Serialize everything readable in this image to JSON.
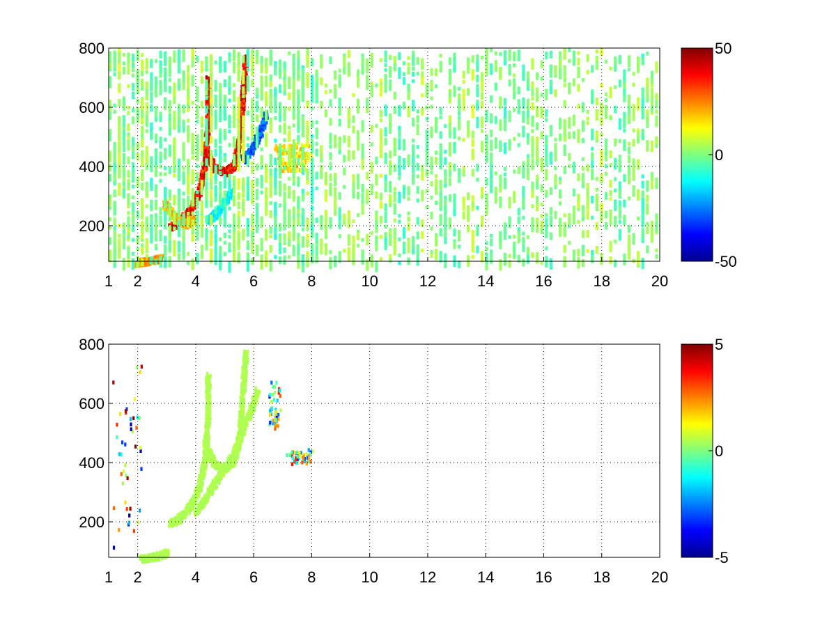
{
  "chart_data": [
    {
      "type": "heatmap",
      "x_ticks": [
        "1",
        "2",
        "4",
        "6",
        "8",
        "10",
        "12",
        "14",
        "16",
        "18",
        "20"
      ],
      "y_ticks": [
        "200",
        "400",
        "600",
        "800"
      ],
      "xlim": [
        1,
        20
      ],
      "ylim": [
        80,
        800
      ],
      "grid": true,
      "colormap": "jet",
      "colorbar": {
        "range": [
          -50,
          50
        ],
        "ticks": [
          "50",
          "0",
          "-50"
        ]
      },
      "features": [
        {
          "kind": "curve",
          "value": 40,
          "points": [
            [
              3.1,
              200
            ],
            [
              3.4,
              215
            ],
            [
              3.8,
              260
            ],
            [
              4.1,
              320
            ],
            [
              4.3,
              420
            ],
            [
              4.4,
              560
            ],
            [
              4.4,
              700
            ]
          ]
        },
        {
          "kind": "curve",
          "value": 40,
          "points": [
            [
              4.3,
              470
            ],
            [
              4.6,
              400
            ],
            [
              5.0,
              385
            ],
            [
              5.3,
              410
            ],
            [
              5.5,
              500
            ],
            [
              5.6,
              650
            ],
            [
              5.7,
              780
            ]
          ]
        },
        {
          "kind": "curve",
          "value": 22,
          "points": [
            [
              2.9,
              280
            ],
            [
              3.3,
              230
            ],
            [
              3.6,
              210
            ],
            [
              3.9,
              225
            ]
          ]
        },
        {
          "kind": "curve",
          "value": -30,
          "points": [
            [
              5.6,
              430
            ],
            [
              5.9,
              460
            ],
            [
              6.2,
              520
            ],
            [
              6.4,
              580
            ]
          ]
        },
        {
          "kind": "curve",
          "value": -15,
          "points": [
            [
              4.4,
              220
            ],
            [
              4.8,
              260
            ],
            [
              5.2,
              320
            ]
          ]
        },
        {
          "kind": "curve",
          "value": 25,
          "points": [
            [
              1.9,
              80
            ],
            [
              2.3,
              85
            ],
            [
              2.8,
              95
            ]
          ]
        },
        {
          "kind": "blob",
          "value": 18,
          "x": [
            6.7,
            8.0
          ],
          "y": [
            390,
            480
          ]
        },
        {
          "kind": "noise",
          "value_range": [
            -15,
            12
          ],
          "x": [
            1,
            20
          ],
          "y": [
            80,
            800
          ]
        }
      ]
    },
    {
      "type": "heatmap",
      "x_ticks": [
        "1",
        "2",
        "4",
        "6",
        "8",
        "10",
        "12",
        "14",
        "16",
        "18",
        "20"
      ],
      "y_ticks": [
        "200",
        "400",
        "600",
        "800"
      ],
      "xlim": [
        1,
        20
      ],
      "ylim": [
        80,
        800
      ],
      "grid": true,
      "colormap": "jet",
      "colorbar": {
        "range": [
          -5,
          5
        ],
        "ticks": [
          "5",
          "0",
          "-5"
        ]
      },
      "features": [
        {
          "kind": "curve",
          "value": 0.5,
          "points": [
            [
              3.1,
              200
            ],
            [
              3.4,
              215
            ],
            [
              3.8,
              260
            ],
            [
              4.1,
              320
            ],
            [
              4.3,
              420
            ],
            [
              4.4,
              560
            ],
            [
              4.4,
              700
            ]
          ]
        },
        {
          "kind": "curve",
          "value": 0.5,
          "points": [
            [
              4.3,
              470
            ],
            [
              4.6,
              400
            ],
            [
              5.0,
              385
            ],
            [
              5.3,
              410
            ],
            [
              5.5,
              500
            ],
            [
              5.6,
              650
            ],
            [
              5.7,
              780
            ]
          ]
        },
        {
          "kind": "curve",
          "value": 0.5,
          "points": [
            [
              4.0,
              240
            ],
            [
              4.6,
              330
            ],
            [
              5.2,
              420
            ],
            [
              5.8,
              560
            ],
            [
              6.1,
              650
            ]
          ]
        },
        {
          "kind": "curve",
          "value": 0.5,
          "points": [
            [
              2.1,
              80
            ],
            [
              2.6,
              88
            ],
            [
              3.0,
              100
            ]
          ]
        },
        {
          "kind": "scatter",
          "value_range": [
            -4,
            4
          ],
          "x": [
            6.5,
            6.9
          ],
          "y": [
            520,
            680
          ]
        },
        {
          "kind": "scatter",
          "value_range": [
            -4,
            4
          ],
          "x": [
            7.1,
            8.0
          ],
          "y": [
            400,
            450
          ]
        },
        {
          "kind": "scatter",
          "value_range": [
            -5,
            5
          ],
          "x": [
            1.1,
            2.1
          ],
          "y": [
            100,
            740
          ]
        }
      ]
    }
  ]
}
